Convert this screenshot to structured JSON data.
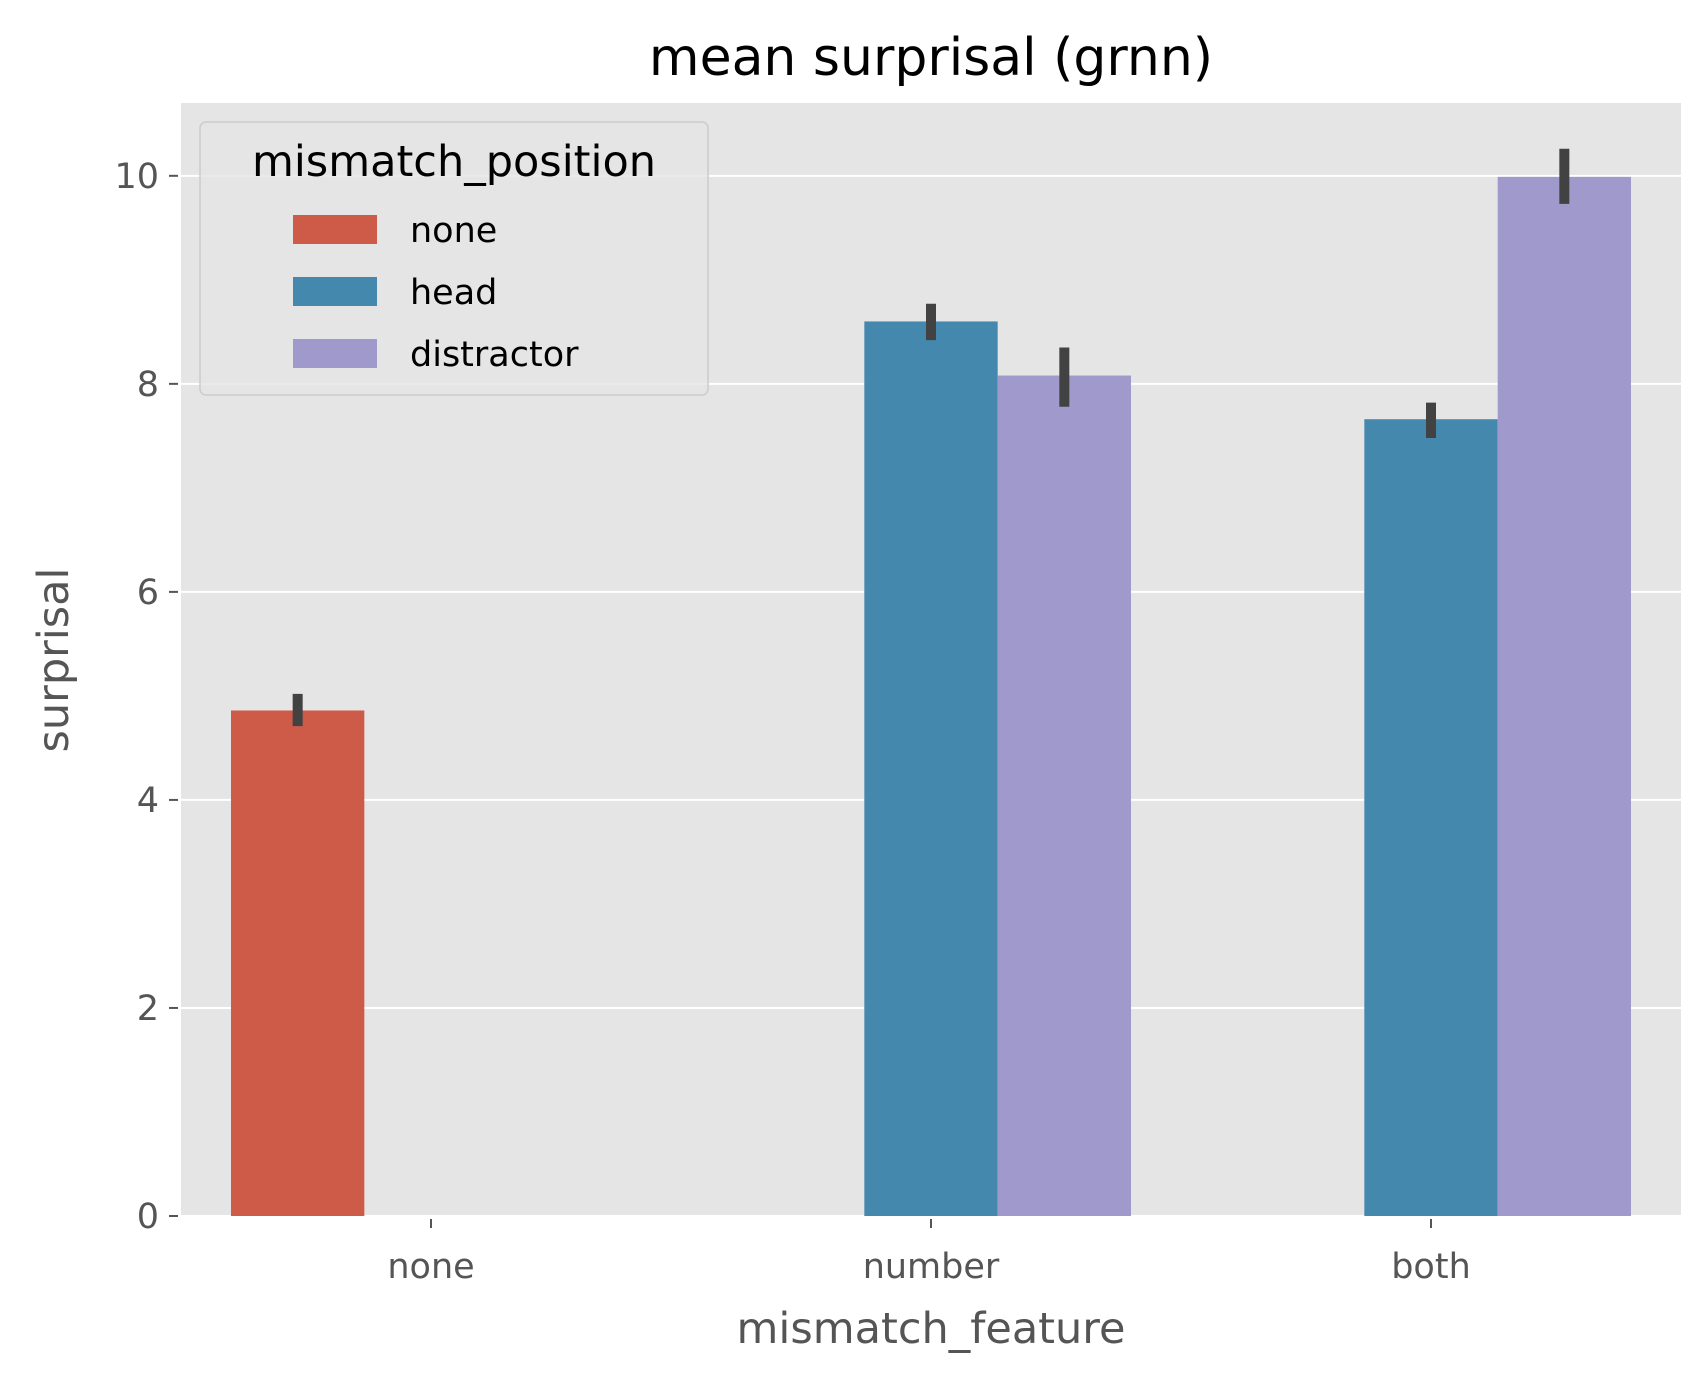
{
  "chart_data": {
    "type": "bar",
    "title": "mean surprisal (grnn)",
    "xlabel": "mismatch_feature",
    "ylabel": "surprisal",
    "categories": [
      "none",
      "number",
      "both"
    ],
    "ylim": [
      0,
      10.7
    ],
    "yticks": [
      0,
      2,
      4,
      6,
      8,
      10
    ],
    "grid": true,
    "legend": {
      "title": "mismatch_position",
      "placement": "top-left"
    },
    "series": [
      {
        "name": "none",
        "color": "#cd5b48",
        "values": [
          4.86,
          null,
          null
        ],
        "ci_low": [
          4.71,
          null,
          null
        ],
        "ci_high": [
          5.02,
          null,
          null
        ]
      },
      {
        "name": "head",
        "color": "#4588ad",
        "values": [
          null,
          8.6,
          7.66
        ],
        "ci_low": [
          null,
          8.42,
          7.48
        ],
        "ci_high": [
          null,
          8.77,
          7.82
        ]
      },
      {
        "name": "distractor",
        "color": "#9f99cc",
        "values": [
          null,
          8.08,
          9.99
        ],
        "ci_low": [
          null,
          7.78,
          9.73
        ],
        "ci_high": [
          null,
          8.35,
          10.26
        ]
      }
    ]
  }
}
